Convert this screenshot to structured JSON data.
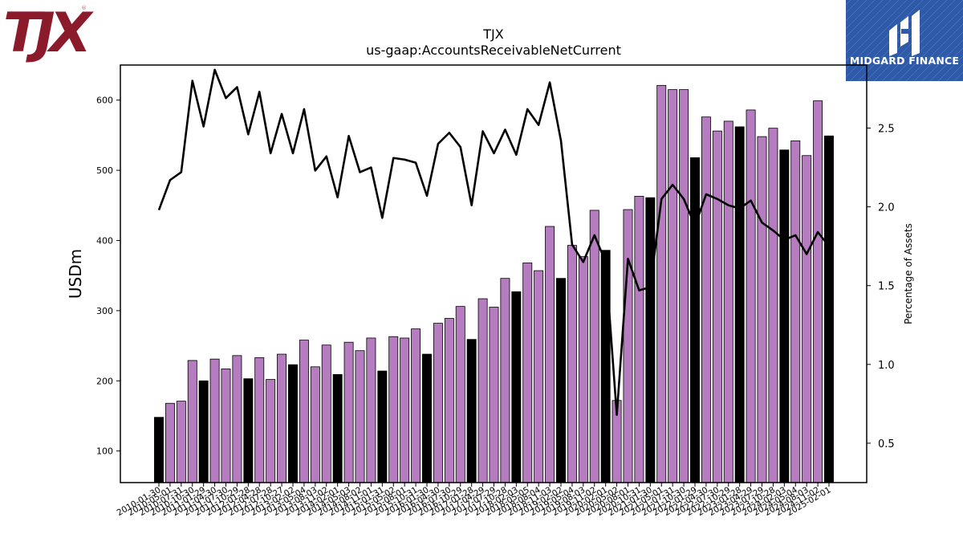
{
  "company_logo": "TJX",
  "brand": "MIDGARD FINANCE",
  "colors": {
    "bar_primary": "#000000",
    "bar_secondary": "#b57cbf",
    "line": "#000000",
    "logo_red": "#8b1a2b",
    "brand_blue": "#2f5aa8"
  },
  "chart_data": {
    "type": "bar",
    "title": "TJX",
    "subtitle": "us-gaap:AccountsReceivableNetCurrent",
    "ylabel": "USDm",
    "y2label": "Percentage of Assets",
    "ylim": [
      55,
      650
    ],
    "y2lim": [
      0.25,
      2.9
    ],
    "yticks": [
      100,
      200,
      300,
      400,
      500,
      600
    ],
    "y2ticks": [
      0.5,
      1.0,
      1.5,
      2.0,
      2.5
    ],
    "y2ticklabels": [
      "0.5",
      "1.0",
      "1.5",
      "2.0",
      "2.5"
    ],
    "grid": false,
    "categories": [
      "2010-01-30",
      "2010-05-01",
      "2010-07-31",
      "2010-10-30",
      "2011-01-29",
      "2011-04-30",
      "2011-07-30",
      "2011-10-29",
      "2012-01-28",
      "2012-04-28",
      "2012-07-28",
      "2012-10-27",
      "2013-02-02",
      "2013-05-04",
      "2013-08-03",
      "2013-11-02",
      "2014-02-01",
      "2014-05-03",
      "2014-08-02",
      "2014-11-01",
      "2015-01-31",
      "2015-05-02",
      "2015-08-01",
      "2015-10-31",
      "2016-01-30",
      "2016-04-30",
      "2016-07-30",
      "2016-10-29",
      "2017-01-28",
      "2017-04-29",
      "2017-07-29",
      "2017-10-28",
      "2018-02-03",
      "2018-05-05",
      "2018-08-04",
      "2018-11-03",
      "2019-02-02",
      "2019-05-04",
      "2019-08-03",
      "2019-11-02",
      "2020-02-01",
      "2020-05-02",
      "2020-08-01",
      "2020-10-31",
      "2021-01-30",
      "2021-05-01",
      "2021-07-31",
      "2021-10-30",
      "2022-01-29",
      "2022-04-30",
      "2022-07-30",
      "2022-10-29",
      "2023-01-28",
      "2023-04-29",
      "2023-07-29",
      "2023-10-28",
      "2024-02-03",
      "2024-05-04",
      "2024-08-03",
      "2024-11-02",
      "2025-02-01"
    ],
    "xticklabels": [
      "2010-01-30",
      "2010-05-01",
      "2010-07-31",
      "2010-10-30",
      "2011-01-29",
      "2011-04-30",
      "2011-07-30",
      "2011-10-29",
      "2012-01-28",
      "2012-04-28",
      "2012-07-28",
      "2012-10-27",
      "2013-02-02",
      "2013-05-04",
      "2013-08-03",
      "2013-11-02",
      "2014-02-01",
      "2014-05-03",
      "2014-08-02",
      "2014-11-01",
      "2015-01-31",
      "2015-05-02",
      "2015-08-01",
      "2015-10-31",
      "2016-01-30",
      "2016-04-30",
      "2016-07-30",
      "2016-10-29",
      "2017-01-28",
      "2017-04-29",
      "2017-07-29",
      "2017-10-28",
      "2018-02-03",
      "2018-05-05",
      "2018-08-04",
      "2018-11-03",
      "2019-02-02",
      "2019-05-04",
      "2019-08-03",
      "2019-11-02",
      "2020-02-01",
      "2020-05-02",
      "2020-08-01",
      "2020-10-31",
      "2021-01-30",
      "2021-05-01",
      "2021-07-31",
      "2021-10-30",
      "2022-01-29",
      "2022-04-30",
      "2022-07-30",
      "2022-10-29",
      "2023-01-28",
      "2023-04-29",
      "2023-07-29",
      "2023-10-28",
      "2024-02-03",
      "2024-05-04",
      "2024-08-03",
      "2024-11-02",
      "2025-02-01"
    ],
    "fiscal_year_end": [
      1,
      0,
      0,
      0,
      1,
      0,
      0,
      0,
      1,
      0,
      0,
      0,
      1,
      0,
      0,
      0,
      1,
      0,
      0,
      0,
      1,
      0,
      0,
      0,
      1,
      0,
      0,
      0,
      1,
      0,
      0,
      0,
      1,
      0,
      0,
      0,
      1,
      0,
      0,
      0,
      1,
      0,
      0,
      0,
      1,
      0,
      0,
      0,
      1,
      0,
      0,
      0,
      1,
      0,
      0,
      0,
      1,
      0,
      0,
      0,
      1
    ],
    "series": [
      {
        "type": "bar",
        "axis": "left",
        "values": [
          148,
          168,
          171,
          229,
          200,
          231,
          217,
          236,
          203,
          233,
          202,
          238,
          223,
          258,
          220,
          251,
          209,
          255,
          243,
          261,
          214,
          263,
          261,
          274,
          238,
          282,
          289,
          306,
          259,
          317,
          305,
          346,
          327,
          368,
          357,
          420,
          346,
          393,
          377,
          443,
          386,
          172,
          444,
          463,
          461,
          621,
          615,
          615,
          518,
          576,
          556,
          570,
          562,
          586,
          548,
          560,
          529,
          542,
          521,
          599,
          549
        ]
      },
      {
        "type": "line",
        "axis": "right",
        "values": [
          1.98,
          2.17,
          2.22,
          2.8,
          2.51,
          2.87,
          2.69,
          2.76,
          2.46,
          2.73,
          2.34,
          2.59,
          2.34,
          2.62,
          2.23,
          2.32,
          2.06,
          2.45,
          2.22,
          2.25,
          1.93,
          2.31,
          2.3,
          2.28,
          2.07,
          2.4,
          2.47,
          2.38,
          2.01,
          2.48,
          2.34,
          2.49,
          2.33,
          2.62,
          2.52,
          2.79,
          2.42,
          1.76,
          1.65,
          1.82,
          1.65,
          0.68,
          1.67,
          1.47,
          1.49,
          2.05,
          2.14,
          2.05,
          1.88,
          2.08,
          2.05,
          2.01,
          1.99,
          2.04,
          1.9,
          1.85,
          1.79,
          1.82,
          1.7,
          1.84,
          1.75
        ]
      }
    ]
  }
}
